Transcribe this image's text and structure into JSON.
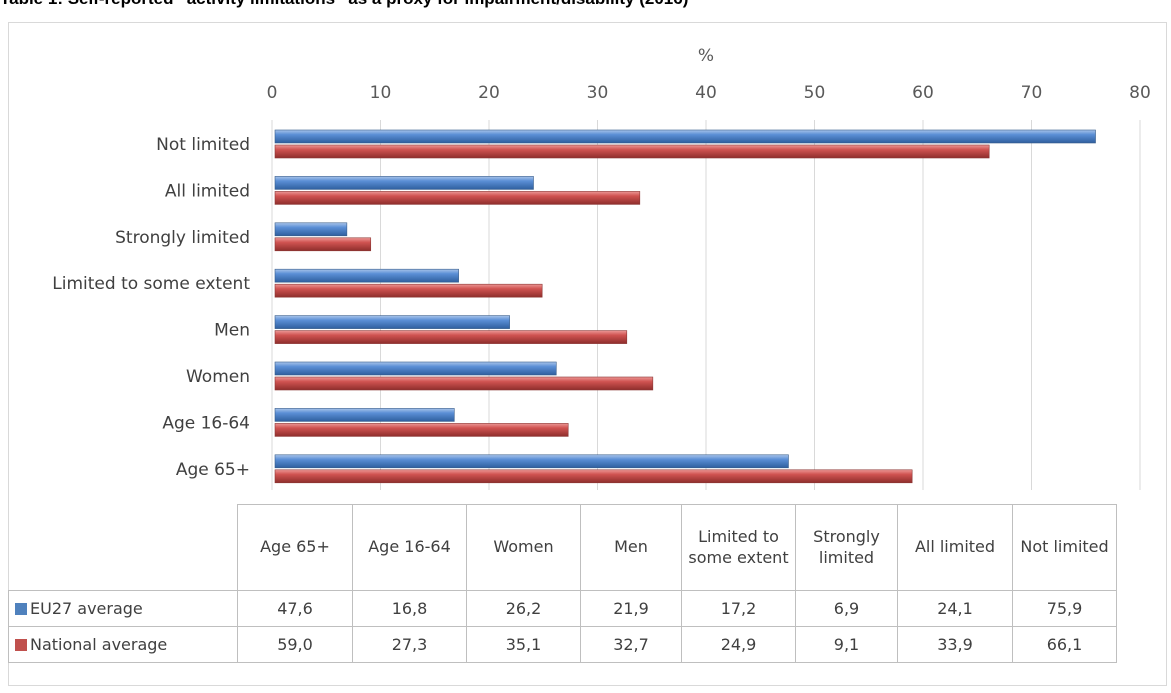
{
  "title": "Table 1: Self-reported “activity limitations” as a proxy for impairment/disability (2016)",
  "chart_data": {
    "type": "bar",
    "orientation": "horizontal",
    "axis_label": "%",
    "xlim": [
      0,
      80
    ],
    "ticks": [
      0,
      10,
      20,
      30,
      40,
      50,
      60,
      70,
      80
    ],
    "categories": [
      "Not limited",
      "All limited",
      "Strongly limited",
      "Limited to some extent",
      "Men",
      "Women",
      "Age 16-64",
      "Age 65+"
    ],
    "table_categories": [
      "Age 65+",
      "Age 16-64",
      "Women",
      "Men",
      "Limited to some extent",
      "Strongly limited",
      "All limited",
      "Not limited"
    ],
    "series": [
      {
        "name": "EU27 average",
        "color": "#4f81bd",
        "values": [
          75.9,
          24.1,
          6.9,
          17.2,
          21.9,
          26.2,
          16.8,
          47.6
        ],
        "table_values": [
          "47,6",
          "16,8",
          "26,2",
          "21,9",
          "17,2",
          "6,9",
          "24,1",
          "75,9"
        ]
      },
      {
        "name": "National average",
        "color": "#c0504d",
        "values": [
          66.1,
          33.9,
          9.1,
          24.9,
          32.7,
          35.1,
          27.3,
          59.0
        ],
        "table_values": [
          "59,0",
          "27,3",
          "35,1",
          "32,7",
          "24,9",
          "9,1",
          "33,9",
          "66,1"
        ]
      }
    ],
    "grid": true,
    "legend": "data-table"
  }
}
